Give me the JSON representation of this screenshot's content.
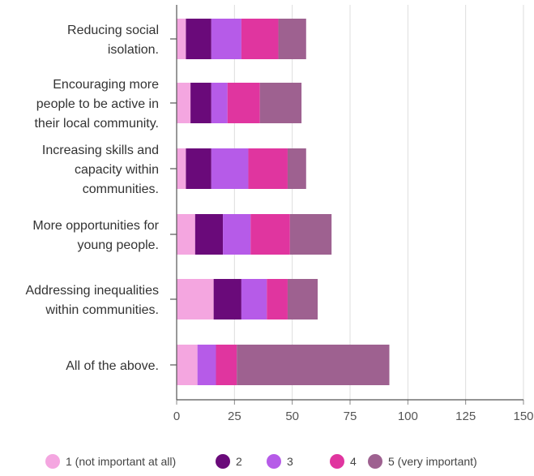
{
  "chart_data": {
    "type": "bar",
    "orientation": "horizontal",
    "stacked": true,
    "categories": [
      [
        "Reducing social",
        "isolation."
      ],
      [
        "Encouraging more",
        "people to be active in",
        "their local community."
      ],
      [
        "Increasing skills and",
        "capacity within",
        "communities."
      ],
      [
        "More opportunities for",
        "young people."
      ],
      [
        "Addressing inequalities",
        "within communities."
      ],
      [
        "All of the above."
      ]
    ],
    "series": [
      {
        "name": "1 (not important at all)",
        "color": "#f4a6e0",
        "values": [
          4,
          6,
          4,
          8,
          16,
          9
        ]
      },
      {
        "name": "2",
        "color": "#6a0a7a",
        "values": [
          11,
          9,
          11,
          12,
          12,
          0
        ]
      },
      {
        "name": "3",
        "color": "#b65be8",
        "values": [
          13,
          7,
          16,
          12,
          11,
          8
        ]
      },
      {
        "name": "4",
        "color": "#e0359f",
        "values": [
          16,
          14,
          17,
          17,
          9,
          9
        ]
      },
      {
        "name": "5 (very important)",
        "color": "#9e6190",
        "values": [
          12,
          18,
          8,
          18,
          13,
          66
        ]
      }
    ],
    "xlim": [
      0,
      150
    ],
    "xticks": [
      "0",
      "25",
      "50",
      "75",
      "100",
      "125",
      "150"
    ],
    "grid": "vertical",
    "legend_position": "bottom"
  }
}
